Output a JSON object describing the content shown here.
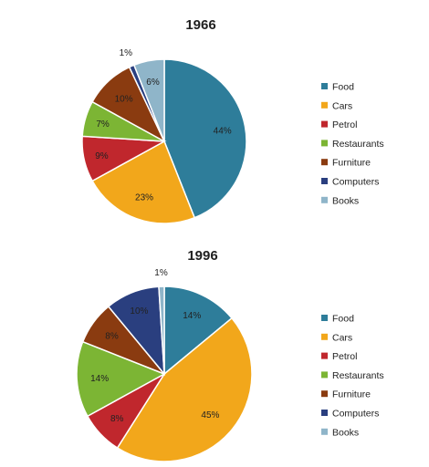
{
  "chart_data": [
    {
      "type": "pie",
      "title": "1966",
      "categories": [
        "Food",
        "Cars",
        "Petrol",
        "Restaurants",
        "Furniture",
        "Computers",
        "Books"
      ],
      "values": [
        44,
        23,
        9,
        7,
        10,
        1,
        6
      ],
      "labels": [
        "44%",
        "23%",
        "9%",
        "7%",
        "10%",
        "1%",
        "6%"
      ],
      "legend_position": "right"
    },
    {
      "type": "pie",
      "title": "1996",
      "categories": [
        "Food",
        "Cars",
        "Petrol",
        "Restaurants",
        "Furniture",
        "Computers",
        "Books"
      ],
      "values": [
        14,
        45,
        8,
        14,
        8,
        10,
        1
      ],
      "labels": [
        "14%",
        "45%",
        "8%",
        "14%",
        "8%",
        "10%",
        "1%"
      ],
      "legend_position": "right"
    }
  ],
  "colors": {
    "Food": "#2e7d9a",
    "Cars": "#f2a71b",
    "Petrol": "#c0272d",
    "Restaurants": "#7cb534",
    "Furniture": "#8a3b10",
    "Computers": "#2a3f7f",
    "Books": "#8fb5c9"
  }
}
